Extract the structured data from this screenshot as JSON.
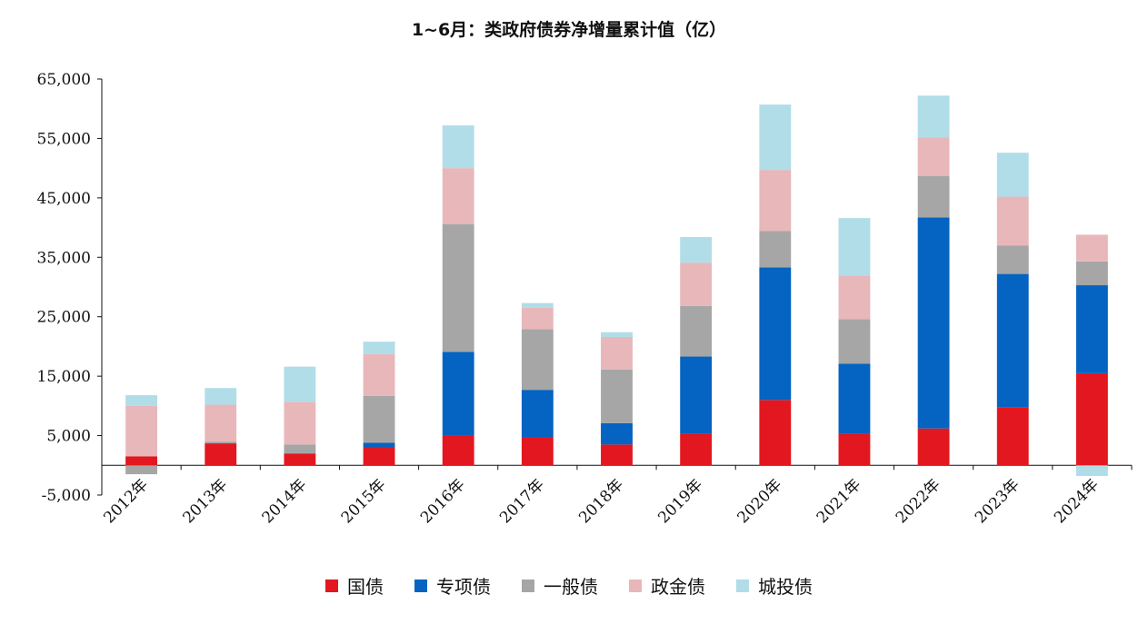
{
  "chart_data": {
    "type": "bar",
    "stacked": true,
    "title": "1~6月：类政府债券净增量累计值（亿）",
    "xlabel": "",
    "ylabel": "",
    "ylim": [
      -5000,
      65000
    ],
    "yticks": [
      -5000,
      5000,
      15000,
      25000,
      35000,
      45000,
      55000,
      65000
    ],
    "ytick_labels": [
      "-5,000",
      "5,000",
      "15,000",
      "25,000",
      "35,000",
      "45,000",
      "55,000",
      "65,000"
    ],
    "categories": [
      "2012年",
      "2013年",
      "2014年",
      "2015年",
      "2016年",
      "2017年",
      "2018年",
      "2019年",
      "2020年",
      "2021年",
      "2022年",
      "2023年",
      "2024年"
    ],
    "legend_position": "bottom",
    "grid": false,
    "series": [
      {
        "name": "国债",
        "color": "#e3171f",
        "values": [
          1500,
          3700,
          2000,
          3100,
          5000,
          4700,
          3500,
          5300,
          11000,
          5300,
          6200,
          9700,
          15500
        ]
      },
      {
        "name": "专项债",
        "color": "#0563c1",
        "values": [
          0,
          0,
          0,
          700,
          14100,
          8000,
          3600,
          13000,
          22300,
          11800,
          35500,
          22500,
          14800
        ]
      },
      {
        "name": "一般债",
        "color": "#a6a6a6",
        "values": [
          -1500,
          300,
          1500,
          7900,
          21500,
          10200,
          9000,
          8500,
          6100,
          7500,
          7000,
          4800,
          4000
        ]
      },
      {
        "name": "政金债",
        "color": "#e8b7ba",
        "values": [
          8500,
          6200,
          7200,
          7000,
          9400,
          3600,
          5500,
          7300,
          10300,
          7300,
          6500,
          8200,
          4500
        ]
      },
      {
        "name": "城投债",
        "color": "#b0dde8",
        "values": [
          1800,
          2800,
          5900,
          2100,
          7200,
          800,
          800,
          4300,
          11000,
          9700,
          7000,
          7400,
          -1800
        ]
      }
    ]
  }
}
